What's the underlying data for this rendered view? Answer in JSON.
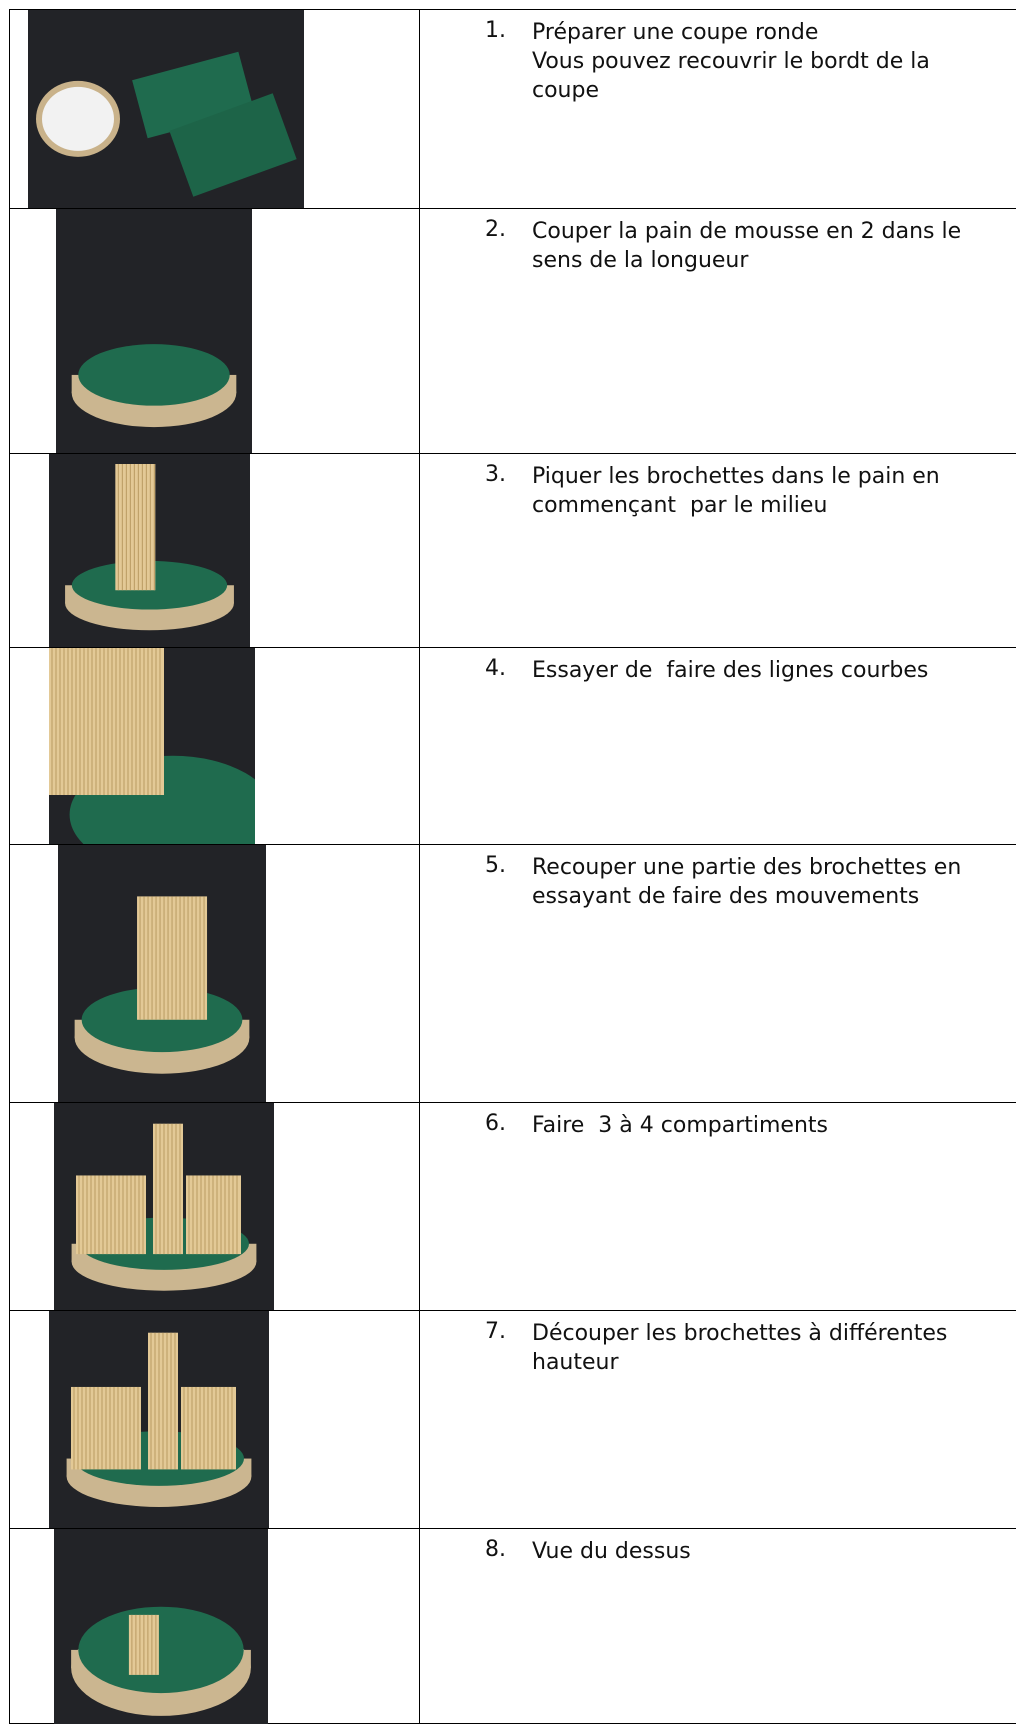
{
  "steps": [
    {
      "number": "1.",
      "text": [
        "Préparer une coupe ronde",
        "Vous pouvez recouvrir le bordt de la coupe"
      ]
    },
    {
      "number": "2.",
      "text": [
        "Couper la pain de mousse en 2 dans le sens de la longueur"
      ]
    },
    {
      "number": "3.",
      "text": [
        "Piquer les brochettes dans le pain en commençant  par le milieu"
      ]
    },
    {
      "number": "4.",
      "text": [
        "Essayer de  faire des lignes courbes"
      ]
    },
    {
      "number": "5.",
      "text": [
        "Recouper une partie des brochettes en essayant de faire des mouvements"
      ]
    },
    {
      "number": "6.",
      "text": [
        "Faire  3 à 4 compartiments"
      ]
    },
    {
      "number": "7.",
      "text": [
        "Découper les brochettes à différentes hauteur"
      ]
    },
    {
      "number": "8.",
      "text": [
        "Vue du dessus"
      ]
    }
  ]
}
